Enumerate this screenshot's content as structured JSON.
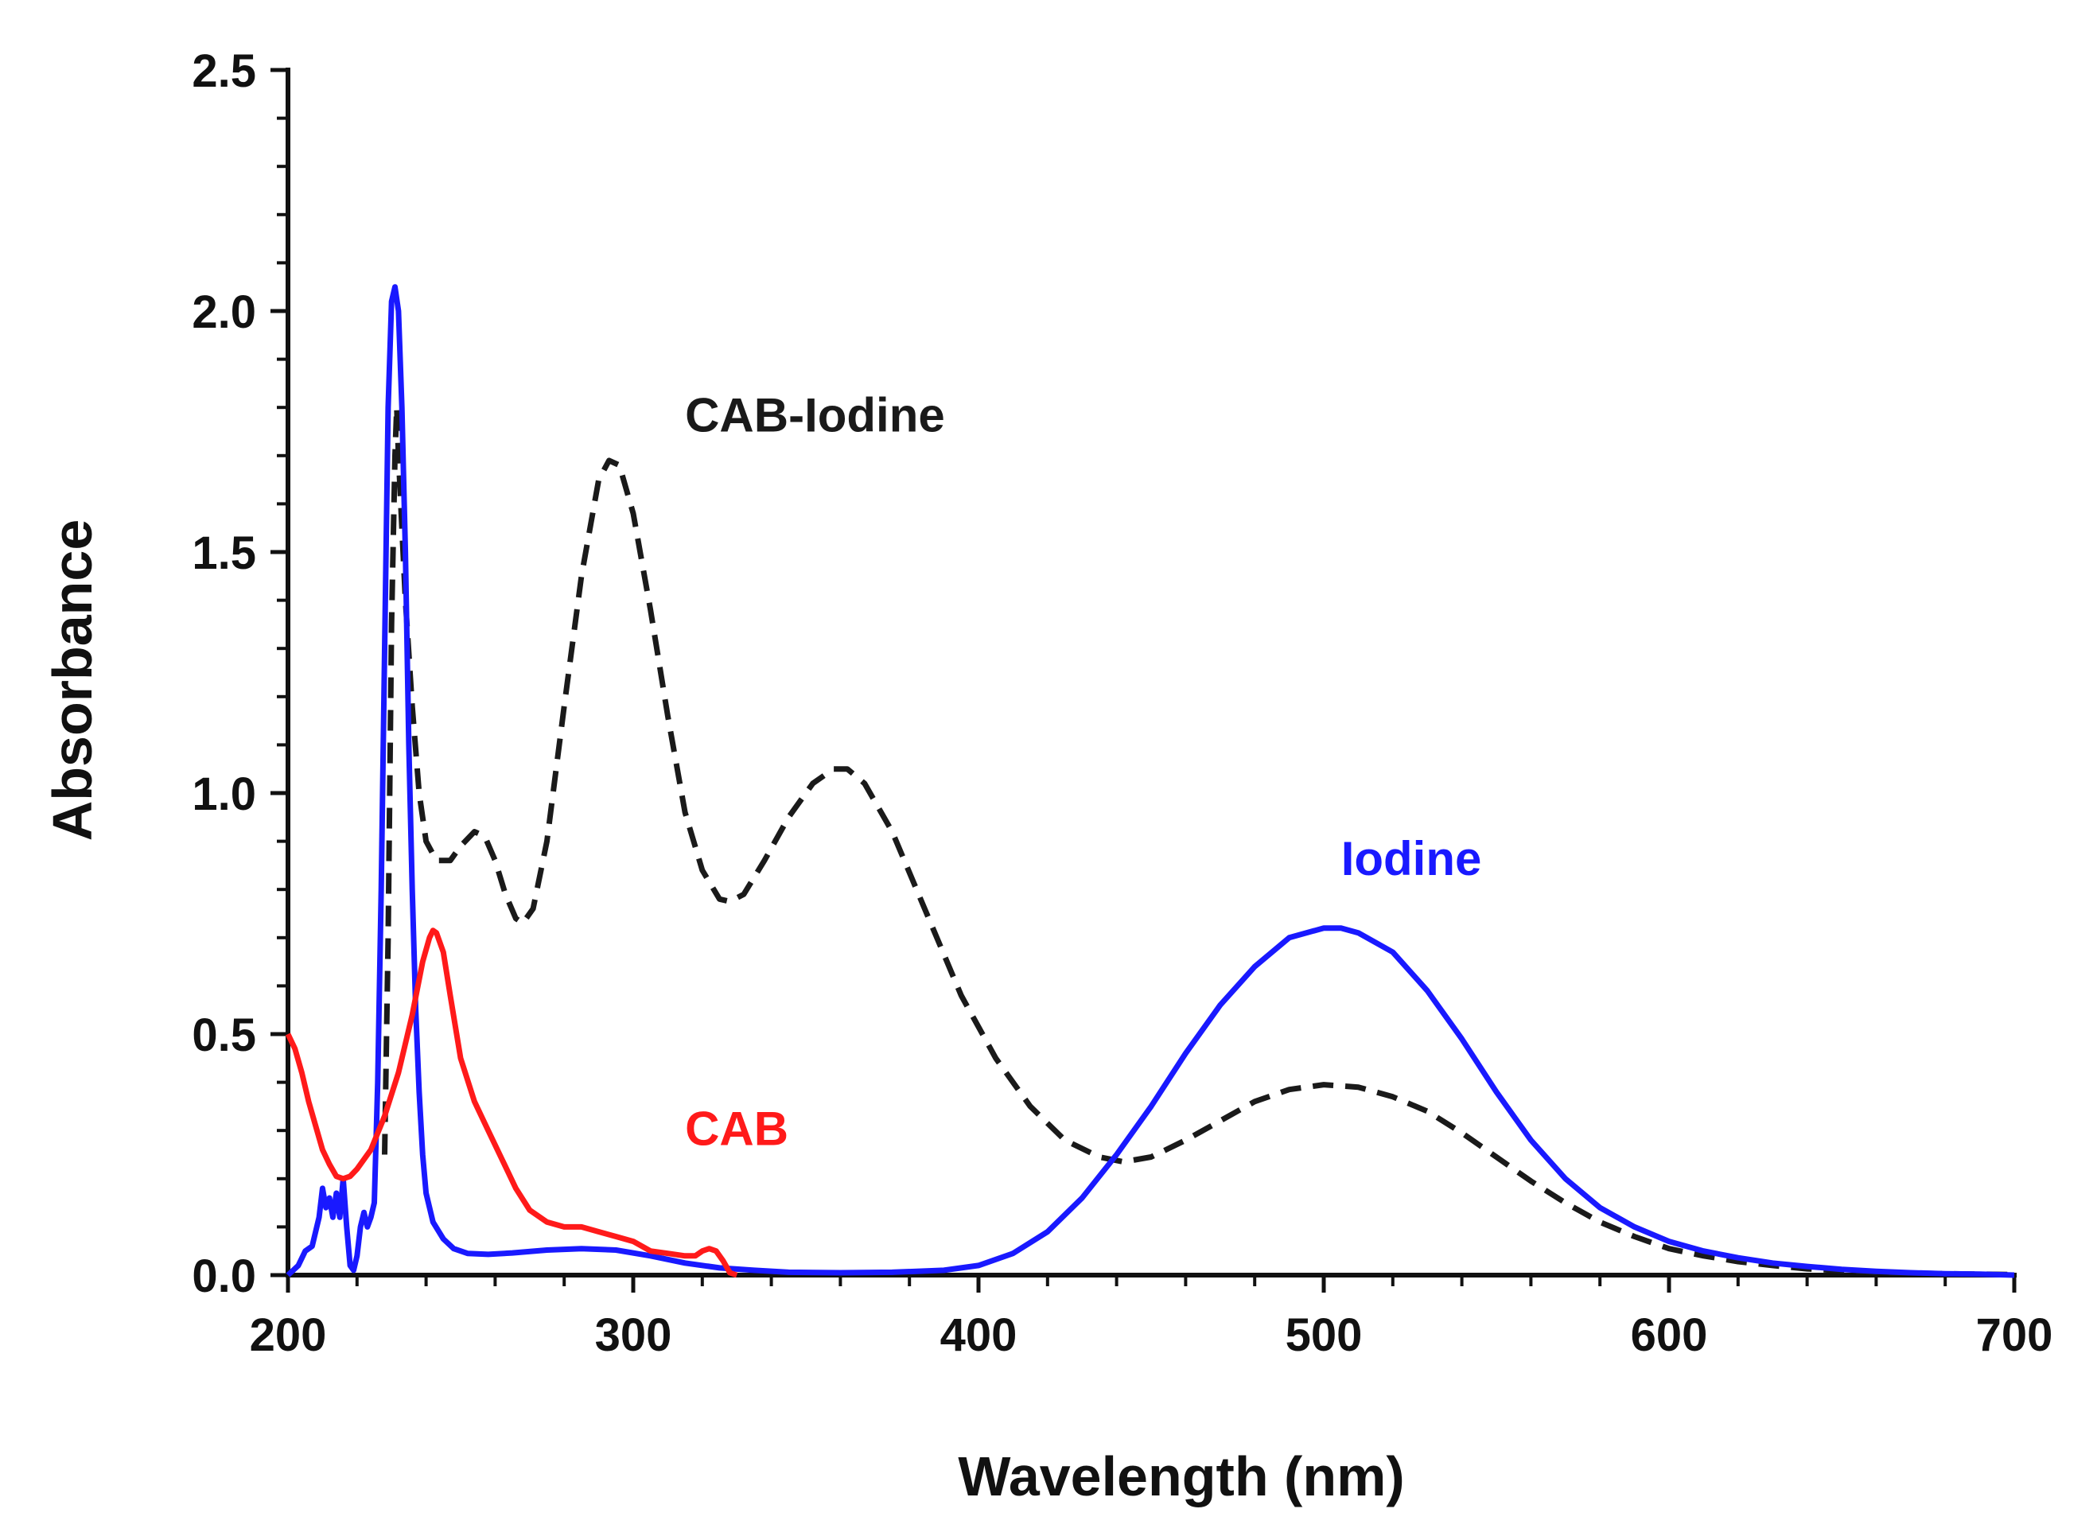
{
  "chart_data": {
    "type": "line",
    "title": "",
    "xlabel": "Wavelength (nm)",
    "ylabel": "Absorbance",
    "xlim": [
      200,
      700
    ],
    "ylim": [
      0,
      2.5
    ],
    "grid": false,
    "legend": "inline labels",
    "x_ticks": [
      {
        "value": 200,
        "label": "200"
      },
      {
        "value": 300,
        "label": "300"
      },
      {
        "value": 400,
        "label": "400"
      },
      {
        "value": 500,
        "label": "500"
      },
      {
        "value": 600,
        "label": "600"
      },
      {
        "value": 700,
        "label": "700"
      }
    ],
    "y_ticks": [
      {
        "value": 0,
        "label": "0.0"
      },
      {
        "value": 0.5,
        "label": "0.5"
      },
      {
        "value": 1.0,
        "label": "1.0"
      },
      {
        "value": 1.5,
        "label": "1.5"
      },
      {
        "value": 2.0,
        "label": "2.0"
      },
      {
        "value": 2.5,
        "label": "2.5"
      }
    ],
    "series": [
      {
        "name": "CAB-Iodine",
        "color": "#1a1a1a",
        "style": "dashed",
        "label_anchor": [
          315,
          1.75
        ],
        "points": [
          [
            228,
            0.25
          ],
          [
            229,
            0.7
          ],
          [
            230,
            1.35
          ],
          [
            231,
            1.7
          ],
          [
            231.5,
            1.8
          ],
          [
            232,
            1.7
          ],
          [
            233,
            1.55
          ],
          [
            234,
            1.4
          ],
          [
            236,
            1.18
          ],
          [
            238,
            1.0
          ],
          [
            240,
            0.9
          ],
          [
            243,
            0.86
          ],
          [
            247,
            0.86
          ],
          [
            250,
            0.89
          ],
          [
            254,
            0.92
          ],
          [
            257,
            0.91
          ],
          [
            260,
            0.86
          ],
          [
            263,
            0.79
          ],
          [
            266,
            0.74
          ],
          [
            268,
            0.73
          ],
          [
            271,
            0.76
          ],
          [
            275,
            0.9
          ],
          [
            280,
            1.18
          ],
          [
            285,
            1.45
          ],
          [
            290,
            1.65
          ],
          [
            293,
            1.69
          ],
          [
            296,
            1.68
          ],
          [
            300,
            1.58
          ],
          [
            305,
            1.38
          ],
          [
            310,
            1.16
          ],
          [
            315,
            0.96
          ],
          [
            320,
            0.84
          ],
          [
            325,
            0.78
          ],
          [
            328,
            0.775
          ],
          [
            332,
            0.79
          ],
          [
            338,
            0.86
          ],
          [
            345,
            0.95
          ],
          [
            352,
            1.02
          ],
          [
            358,
            1.05
          ],
          [
            362,
            1.05
          ],
          [
            367,
            1.02
          ],
          [
            375,
            0.92
          ],
          [
            385,
            0.75
          ],
          [
            395,
            0.58
          ],
          [
            405,
            0.45
          ],
          [
            415,
            0.35
          ],
          [
            425,
            0.28
          ],
          [
            435,
            0.245
          ],
          [
            442,
            0.235
          ],
          [
            450,
            0.245
          ],
          [
            460,
            0.28
          ],
          [
            470,
            0.32
          ],
          [
            480,
            0.36
          ],
          [
            490,
            0.385
          ],
          [
            500,
            0.395
          ],
          [
            510,
            0.39
          ],
          [
            520,
            0.37
          ],
          [
            530,
            0.34
          ],
          [
            540,
            0.295
          ],
          [
            550,
            0.245
          ],
          [
            560,
            0.195
          ],
          [
            570,
            0.15
          ],
          [
            580,
            0.11
          ],
          [
            590,
            0.08
          ],
          [
            600,
            0.055
          ],
          [
            610,
            0.04
          ],
          [
            620,
            0.028
          ],
          [
            630,
            0.02
          ],
          [
            640,
            0.013
          ],
          [
            650,
            0.009
          ],
          [
            660,
            0.006
          ],
          [
            670,
            0.004
          ],
          [
            680,
            0.003
          ],
          [
            690,
            0.002
          ],
          [
            700,
            0.001
          ]
        ]
      },
      {
        "name": "Iodine",
        "color": "#1919ff",
        "style": "solid",
        "label_anchor": [
          505,
          0.83
        ],
        "points": [
          [
            200,
            0.0
          ],
          [
            203,
            0.02
          ],
          [
            205,
            0.05
          ],
          [
            207,
            0.06
          ],
          [
            209,
            0.12
          ],
          [
            210,
            0.18
          ],
          [
            211,
            0.14
          ],
          [
            212,
            0.16
          ],
          [
            213,
            0.12
          ],
          [
            214,
            0.17
          ],
          [
            215,
            0.12
          ],
          [
            216,
            0.2
          ],
          [
            217,
            0.1
          ],
          [
            218,
            0.02
          ],
          [
            219,
            0.01
          ],
          [
            220,
            0.04
          ],
          [
            221,
            0.1
          ],
          [
            222,
            0.13
          ],
          [
            223,
            0.1
          ],
          [
            224,
            0.12
          ],
          [
            225,
            0.15
          ],
          [
            226,
            0.4
          ],
          [
            227,
            0.8
          ],
          [
            228,
            1.3
          ],
          [
            229,
            1.8
          ],
          [
            230,
            2.02
          ],
          [
            231,
            2.05
          ],
          [
            232,
            2.0
          ],
          [
            233,
            1.8
          ],
          [
            234,
            1.5
          ],
          [
            235,
            1.1
          ],
          [
            236,
            0.8
          ],
          [
            237,
            0.55
          ],
          [
            238,
            0.38
          ],
          [
            239,
            0.25
          ],
          [
            240,
            0.17
          ],
          [
            242,
            0.11
          ],
          [
            245,
            0.075
          ],
          [
            248,
            0.055
          ],
          [
            252,
            0.045
          ],
          [
            258,
            0.043
          ],
          [
            265,
            0.046
          ],
          [
            275,
            0.052
          ],
          [
            285,
            0.055
          ],
          [
            295,
            0.052
          ],
          [
            305,
            0.04
          ],
          [
            315,
            0.025
          ],
          [
            325,
            0.015
          ],
          [
            335,
            0.01
          ],
          [
            345,
            0.006
          ],
          [
            360,
            0.005
          ],
          [
            375,
            0.006
          ],
          [
            390,
            0.01
          ],
          [
            400,
            0.02
          ],
          [
            410,
            0.045
          ],
          [
            420,
            0.09
          ],
          [
            430,
            0.16
          ],
          [
            440,
            0.25
          ],
          [
            450,
            0.35
          ],
          [
            460,
            0.46
          ],
          [
            470,
            0.56
          ],
          [
            480,
            0.64
          ],
          [
            490,
            0.7
          ],
          [
            500,
            0.72
          ],
          [
            505,
            0.72
          ],
          [
            510,
            0.71
          ],
          [
            520,
            0.67
          ],
          [
            530,
            0.59
          ],
          [
            540,
            0.49
          ],
          [
            550,
            0.38
          ],
          [
            560,
            0.28
          ],
          [
            570,
            0.2
          ],
          [
            580,
            0.14
          ],
          [
            590,
            0.1
          ],
          [
            600,
            0.07
          ],
          [
            610,
            0.05
          ],
          [
            620,
            0.036
          ],
          [
            630,
            0.025
          ],
          [
            640,
            0.018
          ],
          [
            650,
            0.012
          ],
          [
            660,
            0.008
          ],
          [
            670,
            0.005
          ],
          [
            680,
            0.003
          ],
          [
            690,
            0.002
          ],
          [
            700,
            0.0
          ]
        ]
      },
      {
        "name": "CAB",
        "color": "#ff1a1a",
        "style": "solid",
        "label_anchor": [
          315,
          0.27
        ],
        "points": [
          [
            200,
            0.5
          ],
          [
            202,
            0.47
          ],
          [
            204,
            0.42
          ],
          [
            206,
            0.36
          ],
          [
            208,
            0.31
          ],
          [
            210,
            0.26
          ],
          [
            212,
            0.23
          ],
          [
            214,
            0.205
          ],
          [
            216,
            0.2
          ],
          [
            218,
            0.205
          ],
          [
            220,
            0.22
          ],
          [
            224,
            0.26
          ],
          [
            228,
            0.33
          ],
          [
            232,
            0.42
          ],
          [
            236,
            0.54
          ],
          [
            239,
            0.65
          ],
          [
            241,
            0.7
          ],
          [
            242,
            0.715
          ],
          [
            243,
            0.71
          ],
          [
            245,
            0.67
          ],
          [
            247,
            0.58
          ],
          [
            250,
            0.45
          ],
          [
            254,
            0.36
          ],
          [
            258,
            0.3
          ],
          [
            262,
            0.24
          ],
          [
            266,
            0.18
          ],
          [
            270,
            0.135
          ],
          [
            275,
            0.11
          ],
          [
            280,
            0.1
          ],
          [
            285,
            0.1
          ],
          [
            290,
            0.09
          ],
          [
            295,
            0.08
          ],
          [
            300,
            0.07
          ],
          [
            305,
            0.05
          ],
          [
            310,
            0.045
          ],
          [
            315,
            0.04
          ],
          [
            318,
            0.04
          ],
          [
            320,
            0.05
          ],
          [
            322,
            0.055
          ],
          [
            324,
            0.05
          ],
          [
            326,
            0.03
          ],
          [
            328,
            0.005
          ],
          [
            330,
            0.0
          ]
        ]
      }
    ]
  }
}
